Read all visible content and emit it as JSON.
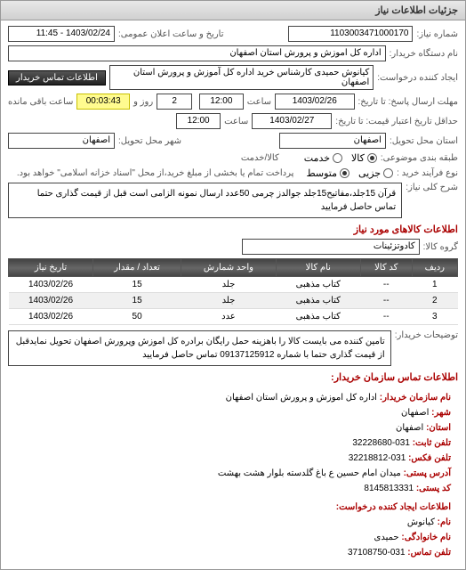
{
  "panel_title": "جزئیات اطلاعات نیاز",
  "form": {
    "req_no_label": "شماره نیاز:",
    "req_no": "1103003471000170",
    "announce_label": "تاریخ و ساعت اعلان عمومی:",
    "announce_value": "1403/02/24 - 11:45",
    "buyer_org_label": "نام دستگاه خریدار:",
    "buyer_org": "اداره کل اموزش و پرورش استان اصفهان",
    "requester_label": "ایجاد کننده درخواست:",
    "requester": "کیانوش حمیدی کارشناس خرید اداره کل آموزش و پرورش استان اصفهان",
    "contact_btn": "اطلاعات تماس خریدار",
    "deadline_send_label": "مهلت ارسال پاسخ: تا تاریخ:",
    "deadline_send_date": "1403/02/26",
    "deadline_send_time_label": "ساعت",
    "deadline_send_time": "12:00",
    "days_label": "روز و",
    "days_value": "2",
    "remain_label": "ساعت باقی مانده",
    "remain_value": "00:03:43",
    "validity_label": "حداقل تاریخ اعتبار قیمت: تا تاریخ:",
    "validity_date": "1403/02/27",
    "validity_time_label": "ساعت",
    "validity_time": "12:00",
    "delivery_state_label": "استان محل تحویل:",
    "delivery_state": "اصفهان",
    "delivery_city_label": "شهر محل تحویل:",
    "delivery_city": "اصفهان",
    "commodity_group_label": "طبقه بندی موضوعی:",
    "commodity_opts": [
      "کالا",
      "خدمت"
    ],
    "commodity_selected": 0,
    "supply_type_label": "نوع فرآیند خرید :",
    "supply_opts": [
      "جزیی",
      "متوسط"
    ],
    "supply_selected": 1,
    "supply_note": "پرداخت تمام یا بخشی از مبلغ خرید،از محل \"اسناد خزانه اسلامی\" خواهد بود.",
    "need_desc_label": "شرح کلی نیاز:",
    "need_desc": "قرآن 15جلد،مفاتیح15جلد جوالدز چرمی 50عدد ارسال نمونه الزامی است قبل از قیمت گذاری حتما تماس حاصل فرمایید"
  },
  "goods": {
    "section_title": "اطلاعات کالاهای مورد نیاز",
    "group_label": "گروه کالا:",
    "group_value": "کادوتزئینات",
    "columns": [
      "ردیف",
      "کد کالا",
      "نام کالا",
      "واحد شمارش",
      "تعداد / مقدار",
      "تاریخ نیاز"
    ],
    "rows": [
      [
        "1",
        "--",
        "کتاب مذهبی",
        "جلد",
        "15",
        "1403/02/26"
      ],
      [
        "2",
        "--",
        "کتاب مذهبی",
        "جلد",
        "15",
        "1403/02/26"
      ],
      [
        "3",
        "--",
        "کتاب مذهبی",
        "عدد",
        "50",
        "1403/02/26"
      ]
    ]
  },
  "buyer_note": {
    "label": "توضیحات خریدار:",
    "text": "تامین کننده می بایست کالا را باهزینه حمل رایگان برادره کل اموزش وپرورش اصفهان تحویل نمایدقبل از قیمت گذاری حتما با شماره 09137125912 تماس حاصل فرمایید"
  },
  "contact": {
    "section_title": "اطلاعات تماس سازمان خریدار:",
    "org_label": "نام سازمان خریدار:",
    "org": "اداره کل اموزش و پرورش استان اصفهان",
    "city_label": "شهر:",
    "city": "اصفهان",
    "province_label": "استان:",
    "province": "اصفهان",
    "phone_label": "تلفن ثابت:",
    "phone": "031-32228680",
    "fax_label": "تلفن فکس:",
    "fax": "031-32218812",
    "address_label": "آدرس پستی:",
    "address": "میدان امام حسین ع باغ گلدسته بلوار هشت بهشت",
    "post_label": "کد پستی:",
    "post": "8145813331",
    "creator_title": "اطلاعات ایجاد کننده درخواست:",
    "fname_label": "نام:",
    "fname": "کیانوش",
    "lname_label": "نام خانوادگی:",
    "lname": "حمیدی",
    "cphone_label": "تلفن تماس:",
    "cphone": "031-37108750"
  },
  "style": {
    "header_bg": "#d8d8d8",
    "countdown_bg": "#fffb8f"
  }
}
